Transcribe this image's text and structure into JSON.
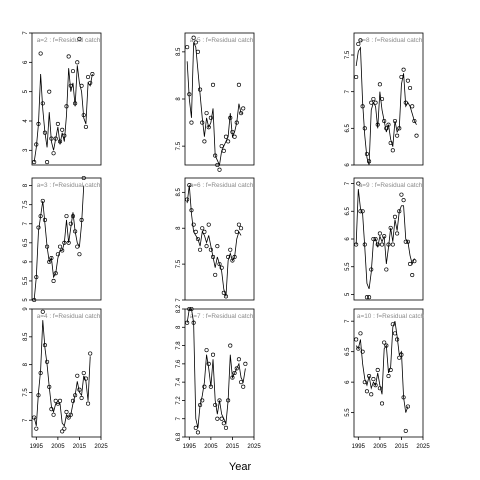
{
  "chart_data": {
    "type": "scatter",
    "xlabel": "Year",
    "x_ticks": [
      1995,
      2005,
      2015,
      2025
    ],
    "x_range": [
      1993,
      2025
    ],
    "panels": [
      {
        "title": "a=2  :  f=Residual catch",
        "ylim": [
          2.5,
          7.0
        ],
        "y_ticks": [
          3,
          4,
          5,
          6,
          7
        ],
        "years": [
          1994,
          1995,
          1996,
          1997,
          1998,
          1999,
          2000,
          2001,
          2002,
          2003,
          2004,
          2005,
          2006,
          2007,
          2008,
          2009,
          2010,
          2011,
          2012,
          2013,
          2014,
          2015,
          2016,
          2017,
          2018,
          2019,
          2020,
          2021,
          2022,
          2023
        ],
        "points": [
          2.6,
          3.2,
          3.9,
          6.3,
          4.6,
          3.6,
          2.6,
          5.0,
          3.4,
          2.9,
          3.4,
          3.9,
          3.3,
          3.7,
          3.5,
          4.5,
          6.2,
          5.2,
          5.7,
          4.6,
          6.0,
          6.8,
          5.2,
          4.2,
          3.8,
          5.5,
          5.3,
          5.6,
          null,
          null
        ],
        "fit": [
          2.6,
          3.1,
          3.9,
          5.6,
          4.4,
          3.6,
          3.1,
          4.3,
          3.3,
          3.0,
          3.4,
          3.8,
          3.2,
          3.6,
          3.3,
          4.2,
          5.8,
          5.0,
          5.3,
          4.5,
          5.9,
          5.3,
          5.0,
          4.1,
          3.9,
          5.3,
          5.2,
          5.6,
          null,
          null
        ]
      },
      {
        "title": "a=5  :  f=Residual catch",
        "ylim": [
          7.3,
          8.7
        ],
        "y_ticks": [
          7.5,
          8.0,
          8.5
        ],
        "years": [
          1994,
          1995,
          1996,
          1997,
          1998,
          1999,
          2000,
          2001,
          2002,
          2003,
          2004,
          2005,
          2006,
          2007,
          2008,
          2009,
          2010,
          2011,
          2012,
          2013,
          2014,
          2015,
          2016,
          2017,
          2018,
          2019,
          2020,
          2021,
          2022,
          2023
        ],
        "points": [
          8.55,
          8.05,
          7.75,
          8.65,
          8.6,
          8.5,
          8.1,
          7.75,
          7.55,
          7.85,
          7.7,
          7.8,
          8.15,
          7.4,
          7.3,
          7.25,
          7.5,
          7.45,
          7.6,
          7.55,
          7.8,
          7.65,
          7.6,
          7.75,
          8.15,
          7.85,
          7.9,
          null,
          null,
          null
        ],
        "fit": [
          8.4,
          8.0,
          7.8,
          8.6,
          8.55,
          8.3,
          8.05,
          7.8,
          7.6,
          7.8,
          7.7,
          7.75,
          7.9,
          7.4,
          7.35,
          7.3,
          7.45,
          7.5,
          7.55,
          7.6,
          7.85,
          7.6,
          7.65,
          7.75,
          7.95,
          7.85,
          7.85,
          null,
          null,
          null
        ]
      },
      {
        "title": "a=8  :  f=Residual catch",
        "ylim": [
          6.0,
          7.8
        ],
        "y_ticks": [
          6.0,
          6.5,
          7.0,
          7.5
        ],
        "years": [
          1994,
          1995,
          1996,
          1997,
          1998,
          1999,
          2000,
          2001,
          2002,
          2003,
          2004,
          2005,
          2006,
          2007,
          2008,
          2009,
          2010,
          2011,
          2012,
          2013,
          2014,
          2015,
          2016,
          2017,
          2018,
          2019,
          2020,
          2021,
          2022,
          2023
        ],
        "points": [
          7.2,
          7.65,
          7.7,
          6.8,
          6.5,
          6.15,
          6.05,
          6.85,
          6.9,
          6.85,
          6.55,
          7.1,
          6.9,
          6.6,
          6.5,
          6.55,
          6.3,
          6.2,
          6.6,
          6.4,
          6.5,
          7.2,
          7.3,
          6.85,
          7.15,
          7.05,
          6.8,
          6.6,
          6.4,
          null
        ],
        "fit": [
          7.35,
          7.55,
          7.6,
          6.85,
          6.4,
          6.1,
          6.0,
          6.75,
          6.85,
          6.8,
          6.5,
          7.0,
          6.75,
          6.6,
          6.45,
          6.55,
          6.35,
          6.25,
          6.6,
          6.45,
          6.5,
          7.1,
          7.25,
          6.8,
          6.85,
          6.8,
          6.7,
          6.6,
          6.55,
          null
        ]
      },
      {
        "title": "a=3  :  f=Residual catch",
        "ylim": [
          5.0,
          8.2
        ],
        "y_ticks": [
          5.0,
          5.5,
          6.0,
          6.5,
          7.0,
          7.5,
          8.0
        ],
        "years": [
          1994,
          1995,
          1996,
          1997,
          1998,
          1999,
          2000,
          2001,
          2002,
          2003,
          2004,
          2005,
          2006,
          2007,
          2008,
          2009,
          2010,
          2011,
          2012,
          2013,
          2014,
          2015,
          2016,
          2017,
          2018,
          2019,
          2020,
          2021,
          2022,
          2023
        ],
        "points": [
          5.0,
          5.6,
          6.9,
          7.2,
          7.6,
          7.1,
          6.4,
          6.0,
          6.1,
          5.5,
          5.7,
          6.2,
          6.4,
          6.3,
          6.5,
          7.2,
          6.5,
          7.0,
          7.2,
          6.8,
          6.4,
          6.2,
          7.1,
          8.2,
          null,
          null,
          null,
          null,
          null,
          null
        ],
        "fit": [
          5.0,
          5.6,
          6.8,
          7.2,
          7.6,
          7.0,
          6.4,
          6.0,
          6.1,
          5.6,
          5.7,
          6.1,
          6.3,
          6.3,
          6.5,
          7.1,
          6.5,
          6.9,
          7.3,
          6.8,
          6.5,
          6.4,
          7.0,
          8.0,
          null,
          null,
          null,
          null,
          null,
          null
        ]
      },
      {
        "title": "a=6  :  f=Residual catch",
        "ylim": [
          7.0,
          8.7
        ],
        "y_ticks": [
          7.0,
          7.5,
          8.0,
          8.5
        ],
        "years": [
          1994,
          1995,
          1996,
          1997,
          1998,
          1999,
          2000,
          2001,
          2002,
          2003,
          2004,
          2005,
          2006,
          2007,
          2008,
          2009,
          2010,
          2011,
          2012,
          2013,
          2014,
          2015,
          2016,
          2017,
          2018,
          2019,
          2020,
          2021,
          2022,
          2023
        ],
        "points": [
          8.4,
          8.6,
          8.25,
          8.05,
          7.95,
          7.85,
          7.7,
          8.0,
          7.95,
          7.75,
          8.05,
          7.7,
          7.6,
          7.35,
          7.75,
          7.5,
          7.45,
          7.1,
          7.05,
          7.6,
          7.7,
          7.55,
          7.6,
          7.95,
          8.05,
          8.0,
          null,
          null,
          null,
          null
        ],
        "fit": [
          8.35,
          8.6,
          8.2,
          7.95,
          7.9,
          7.85,
          7.75,
          7.95,
          7.9,
          7.8,
          7.9,
          7.75,
          7.6,
          7.45,
          7.6,
          7.5,
          7.4,
          7.15,
          7.05,
          7.55,
          7.65,
          7.55,
          7.6,
          7.85,
          7.95,
          7.9,
          null,
          null,
          null,
          null
        ]
      },
      {
        "title": "a=9  :  f=Residual catch",
        "ylim": [
          4.9,
          7.1
        ],
        "y_ticks": [
          5.0,
          5.5,
          6.0,
          6.5,
          7.0
        ],
        "years": [
          1994,
          1995,
          1996,
          1997,
          1998,
          1999,
          2000,
          2001,
          2002,
          2003,
          2004,
          2005,
          2006,
          2007,
          2008,
          2009,
          2010,
          2011,
          2012,
          2013,
          2014,
          2015,
          2016,
          2017,
          2018,
          2019,
          2020,
          2021,
          2022,
          2023
        ],
        "points": [
          5.9,
          7.0,
          6.5,
          6.5,
          5.9,
          4.95,
          4.95,
          5.45,
          6.0,
          6.0,
          5.9,
          6.1,
          5.9,
          6.05,
          5.45,
          5.9,
          6.2,
          5.9,
          6.4,
          6.1,
          6.5,
          6.8,
          6.7,
          5.95,
          5.95,
          5.55,
          5.35,
          5.6,
          null,
          null
        ],
        "fit": [
          5.9,
          6.9,
          6.55,
          6.45,
          5.85,
          5.2,
          5.1,
          5.4,
          5.95,
          6.0,
          5.85,
          6.05,
          5.95,
          6.05,
          5.55,
          5.85,
          6.2,
          5.95,
          6.35,
          6.15,
          6.5,
          6.6,
          6.6,
          6.0,
          5.95,
          5.7,
          5.55,
          5.65,
          null,
          null
        ]
      },
      {
        "title": "a=4  :  f=Residual catch",
        "ylim": [
          6.7,
          9.0
        ],
        "y_ticks": [
          7.0,
          7.5,
          8.0,
          8.5,
          9.0
        ],
        "years": [
          1994,
          1995,
          1996,
          1997,
          1998,
          1999,
          2000,
          2001,
          2002,
          2003,
          2004,
          2005,
          2006,
          2007,
          2008,
          2009,
          2010,
          2011,
          2012,
          2013,
          2014,
          2015,
          2016,
          2017,
          2018,
          2019,
          2020,
          2021,
          2022,
          2023
        ],
        "points": [
          7.05,
          6.85,
          7.45,
          7.85,
          8.95,
          8.35,
          8.05,
          7.6,
          7.2,
          7.1,
          7.35,
          7.3,
          7.35,
          6.8,
          6.85,
          7.15,
          7.05,
          7.1,
          7.35,
          7.45,
          7.8,
          7.55,
          7.4,
          7.85,
          7.75,
          7.3,
          8.2,
          null,
          null,
          null
        ],
        "fit": [
          7.05,
          6.9,
          7.5,
          7.9,
          8.8,
          8.3,
          8.0,
          7.6,
          7.25,
          7.15,
          7.3,
          7.3,
          7.3,
          6.95,
          6.9,
          7.1,
          7.05,
          7.1,
          7.3,
          7.45,
          7.7,
          7.5,
          7.45,
          7.8,
          7.7,
          7.35,
          8.15,
          null,
          null,
          null
        ]
      },
      {
        "title": "a=7  :  f=Residual catch",
        "ylim": [
          6.8,
          8.2
        ],
        "y_ticks": [
          6.8,
          7.0,
          7.2,
          7.4,
          7.6,
          7.8,
          8.0,
          8.2
        ],
        "years": [
          1994,
          1995,
          1996,
          1997,
          1998,
          1999,
          2000,
          2001,
          2002,
          2003,
          2004,
          2005,
          2006,
          2007,
          2008,
          2009,
          2010,
          2011,
          2012,
          2013,
          2014,
          2015,
          2016,
          2017,
          2018,
          2019,
          2020,
          2021,
          2022,
          2023
        ],
        "points": [
          8.05,
          8.2,
          8.2,
          8.05,
          6.9,
          6.85,
          7.15,
          7.2,
          7.35,
          7.75,
          7.6,
          7.35,
          7.7,
          7.15,
          7.0,
          7.2,
          7.0,
          6.95,
          6.9,
          7.2,
          7.8,
          7.45,
          7.5,
          7.55,
          7.65,
          7.4,
          7.35,
          7.6,
          null,
          null
        ],
        "fit": [
          8.05,
          8.2,
          8.2,
          8.05,
          7.0,
          6.9,
          7.15,
          7.25,
          7.4,
          7.7,
          7.55,
          7.35,
          7.65,
          7.2,
          7.05,
          7.2,
          7.05,
          7.0,
          6.95,
          7.2,
          7.7,
          7.45,
          7.5,
          7.55,
          7.6,
          7.45,
          7.4,
          7.55,
          null,
          null
        ]
      },
      {
        "title": "a=10  :  f=Residual catch",
        "ylim": [
          5.1,
          7.2
        ],
        "y_ticks": [
          5.5,
          6.0,
          6.5,
          7.0
        ],
        "years": [
          1994,
          1995,
          1996,
          1997,
          1998,
          1999,
          2000,
          2001,
          2002,
          2003,
          2004,
          2005,
          2006,
          2007,
          2008,
          2009,
          2010,
          2011,
          2012,
          2013,
          2014,
          2015,
          2016,
          2017,
          2018,
          2019,
          2020,
          2021,
          2022,
          2023
        ],
        "points": [
          6.7,
          6.55,
          6.8,
          6.5,
          6.0,
          5.85,
          6.1,
          5.8,
          6.05,
          5.95,
          6.2,
          5.9,
          5.65,
          6.65,
          6.6,
          6.1,
          6.2,
          6.95,
          6.8,
          6.7,
          6.4,
          6.45,
          5.75,
          5.2,
          5.6,
          null,
          null,
          null,
          null,
          null
        ],
        "fit": [
          6.6,
          6.55,
          6.7,
          6.3,
          6.05,
          5.95,
          6.1,
          5.9,
          6.0,
          5.95,
          6.15,
          5.95,
          5.8,
          6.55,
          6.6,
          6.15,
          6.25,
          6.9,
          7.0,
          6.75,
          6.45,
          6.5,
          5.75,
          5.5,
          5.6,
          null,
          null,
          null,
          null,
          null
        ]
      }
    ]
  }
}
